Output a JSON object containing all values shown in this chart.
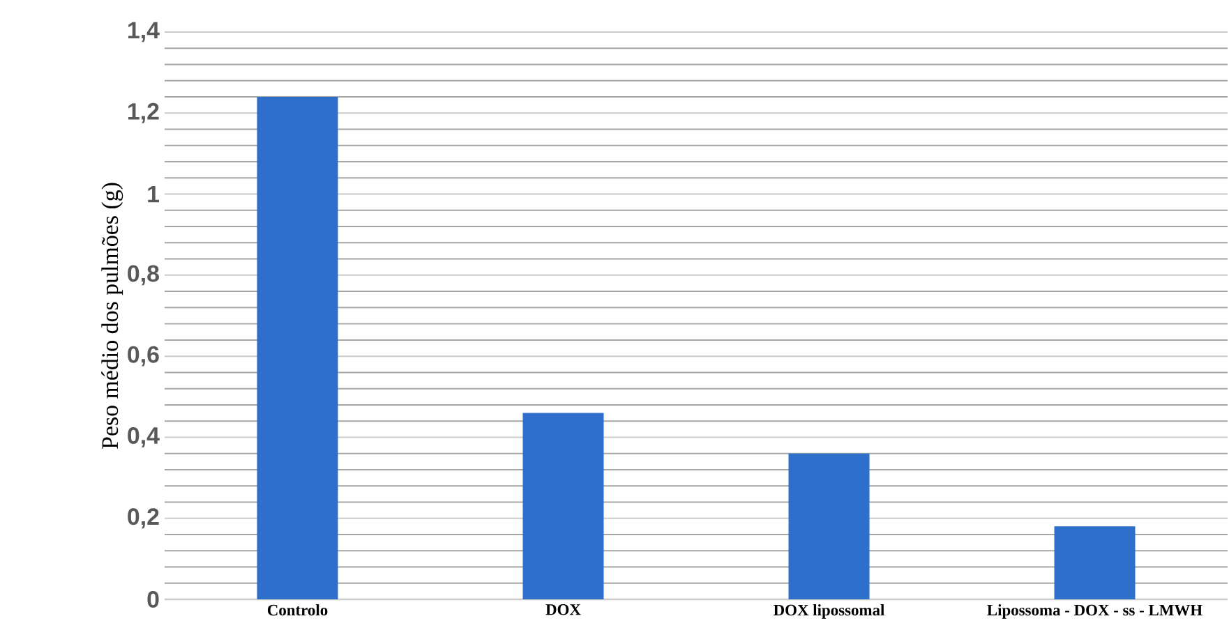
{
  "chart_data": {
    "type": "bar",
    "ylabel": "Peso médio dos pulmões (g)",
    "categories": [
      "Controlo",
      "DOX",
      "DOX lipossomal",
      "Lipossoma - DOX - ss - LMWH"
    ],
    "values": [
      1.24,
      0.46,
      0.36,
      0.18
    ],
    "color": "#2e6fcb",
    "ylim": [
      0,
      1.4
    ],
    "yticks": [
      {
        "value": 0,
        "label": "0"
      },
      {
        "value": 0.2,
        "label": "0,2"
      },
      {
        "value": 0.4,
        "label": "0,4"
      },
      {
        "value": 0.6,
        "label": "0,6"
      },
      {
        "value": 0.8,
        "label": "0,8"
      },
      {
        "value": 1,
        "label": "1"
      },
      {
        "value": 1.2,
        "label": "1,2"
      },
      {
        "value": 1.4,
        "label": "1,4"
      }
    ],
    "grid": true
  }
}
